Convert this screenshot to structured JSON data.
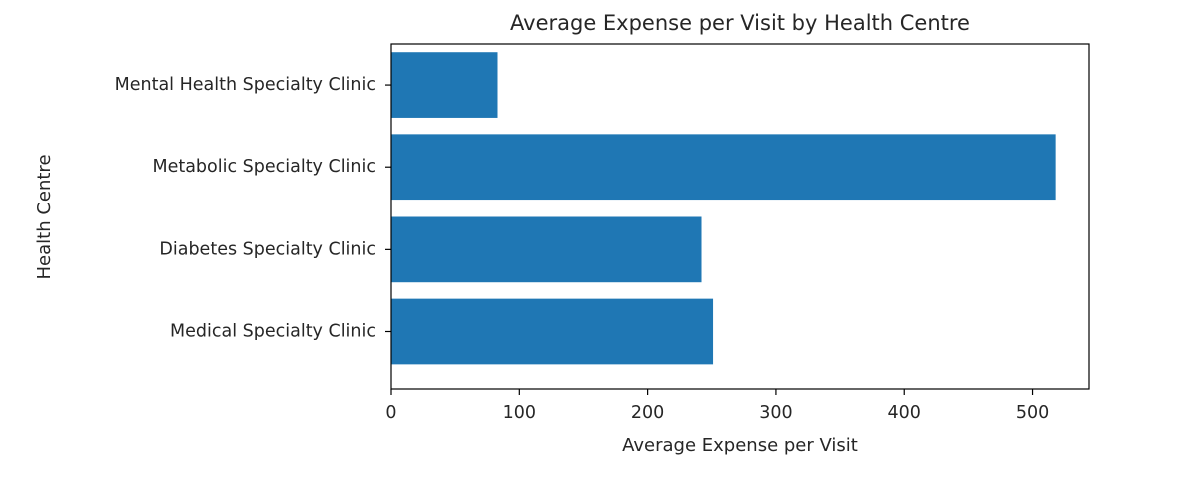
{
  "chart_data": {
    "type": "bar",
    "orientation": "horizontal",
    "title": "Average Expense per Visit by Health Centre",
    "xlabel": "Average Expense per Visit",
    "ylabel": "Health Centre",
    "categories": [
      "Medical Specialty Clinic",
      "Diabetes Specialty Clinic",
      "Metabolic Specialty Clinic",
      "Mental Health Specialty Clinic"
    ],
    "values": [
      251,
      242,
      518,
      83
    ],
    "xlim": [
      0,
      544
    ],
    "xticks": [
      "0",
      "100",
      "200",
      "300",
      "400",
      "500"
    ],
    "bar_color": "#1f77b4",
    "grid": false,
    "legend": "none"
  }
}
